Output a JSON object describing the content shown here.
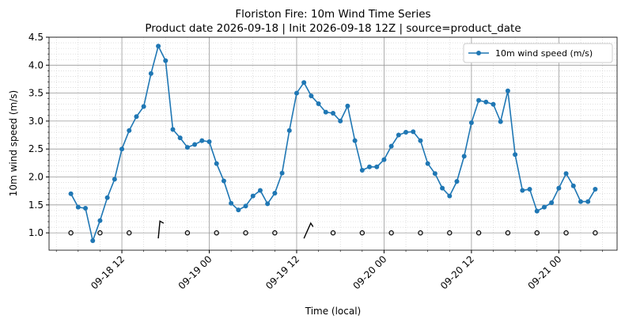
{
  "chart_data": {
    "type": "line",
    "title": "Floriston Fire: 10m Wind Time Series",
    "subtitle": "Product date 2026-09-18 | Init 2026-09-18 12Z | source=product_date",
    "xlabel": "Time (local)",
    "ylabel": "10m wind speed (m/s)",
    "x": [
      "09-18 05",
      "09-18 06",
      "09-18 07",
      "09-18 08",
      "09-18 09",
      "09-18 10",
      "09-18 11",
      "09-18 12",
      "09-18 13",
      "09-18 14",
      "09-18 15",
      "09-18 16",
      "09-18 17",
      "09-18 18",
      "09-18 19",
      "09-18 20",
      "09-18 21",
      "09-18 22",
      "09-18 23",
      "09-19 00",
      "09-19 01",
      "09-19 02",
      "09-19 03",
      "09-19 04",
      "09-19 05",
      "09-19 06",
      "09-19 07",
      "09-19 08",
      "09-19 09",
      "09-19 10",
      "09-19 11",
      "09-19 12",
      "09-19 13",
      "09-19 14",
      "09-19 15",
      "09-19 16",
      "09-19 17",
      "09-19 18",
      "09-19 19",
      "09-19 20",
      "09-19 21",
      "09-19 22",
      "09-19 23",
      "09-20 00",
      "09-20 01",
      "09-20 02",
      "09-20 03",
      "09-20 04",
      "09-20 05",
      "09-20 06",
      "09-20 07",
      "09-20 08",
      "09-20 09",
      "09-20 10",
      "09-20 11",
      "09-20 12",
      "09-20 13",
      "09-20 14",
      "09-20 15",
      "09-20 16",
      "09-20 17",
      "09-20 18",
      "09-20 19",
      "09-20 20",
      "09-20 21",
      "09-20 22",
      "09-20 23",
      "09-21 00",
      "09-21 01",
      "09-21 02",
      "09-21 03",
      "09-21 04",
      "09-21 05"
    ],
    "series": [
      {
        "name": "10m wind speed (m/s)",
        "color": "#1f77b4",
        "values": [
          1.7,
          1.46,
          1.44,
          0.86,
          1.22,
          1.63,
          1.96,
          2.5,
          2.83,
          3.08,
          3.26,
          3.85,
          4.34,
          4.08,
          2.85,
          2.7,
          2.53,
          2.58,
          2.65,
          2.63,
          2.24,
          1.93,
          1.53,
          1.41,
          1.48,
          1.66,
          1.76,
          1.52,
          1.71,
          2.07,
          2.83,
          3.5,
          3.69,
          3.45,
          3.31,
          3.16,
          3.14,
          3.0,
          3.27,
          2.65,
          2.12,
          2.18,
          2.18,
          2.31,
          2.55,
          2.75,
          2.8,
          2.81,
          2.65,
          2.24,
          2.06,
          1.8,
          1.66,
          1.92,
          2.37,
          2.97,
          3.37,
          3.34,
          3.3,
          2.99,
          3.54,
          2.4,
          1.76,
          1.78,
          1.39,
          1.46,
          1.54,
          1.8,
          2.06,
          1.84,
          1.56,
          1.56,
          1.78
        ]
      }
    ],
    "barbs": {
      "y": 1.0,
      "x": [
        "09-18 05",
        "09-18 09",
        "09-18 13",
        "09-18 17",
        "09-18 21",
        "09-19 01",
        "09-19 05",
        "09-19 09",
        "09-19 13",
        "09-19 17",
        "09-19 21",
        "09-20 01",
        "09-20 05",
        "09-20 09",
        "09-20 13",
        "09-20 17",
        "09-20 21",
        "09-21 01",
        "09-21 05"
      ],
      "speed": [
        0,
        0,
        0,
        10,
        0,
        0,
        0,
        0,
        10,
        0,
        0,
        0,
        0,
        0,
        0,
        0,
        0,
        0,
        0
      ],
      "direction": [
        null,
        null,
        null,
        8,
        null,
        null,
        null,
        null,
        35,
        null,
        null,
        null,
        null,
        null,
        null,
        null,
        null,
        null,
        null
      ]
    },
    "xlim": [
      "09-18 02",
      "09-21 08"
    ],
    "xticks": [
      "09-18 12",
      "09-19 00",
      "09-19 12",
      "09-20 00",
      "09-20 12",
      "09-21 00"
    ],
    "ylim": [
      0.69,
      4.5
    ],
    "yticks": [
      {
        "value": 1,
        "label": "1.0"
      },
      1.5,
      {
        "value": 2,
        "label": "2.0"
      },
      2.5,
      {
        "value": 3,
        "label": "3.0"
      },
      3.5,
      {
        "value": 4,
        "label": "4.0"
      },
      4.5
    ],
    "grid": true,
    "minor_grid": true,
    "legend": "upper right"
  }
}
